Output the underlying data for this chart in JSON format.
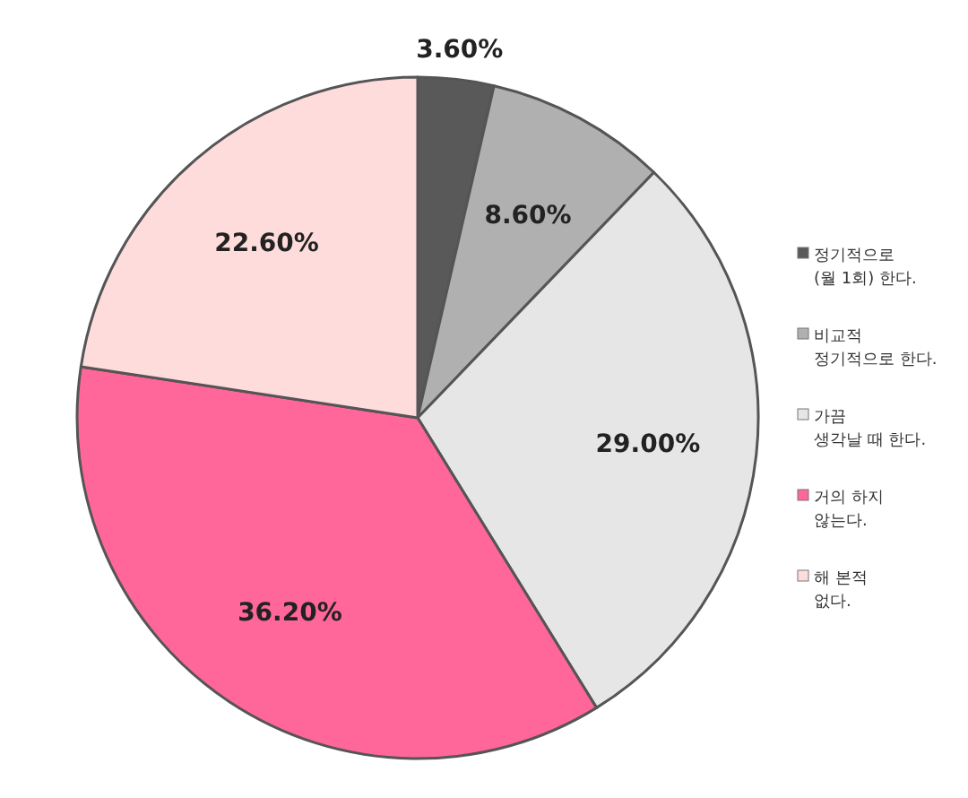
{
  "chart_data": {
    "type": "pie",
    "categories": [
      "정기적으로 (월 1회) 한다.",
      "비교적 정기적으로 한다.",
      "가끔 생각날 때 한다.",
      "거의 하지 않는다.",
      "해 본적 없다."
    ],
    "values": [
      3.6,
      8.6,
      29.0,
      36.2,
      22.6
    ],
    "value_labels": [
      "3.60%",
      "8.60%",
      "29.00%",
      "36.20%",
      "22.60%"
    ],
    "colors": [
      "#595959",
      "#b0b0b0",
      "#e6e6e6",
      "#ff6699",
      "#ffdcdc"
    ],
    "legend": "right"
  }
}
